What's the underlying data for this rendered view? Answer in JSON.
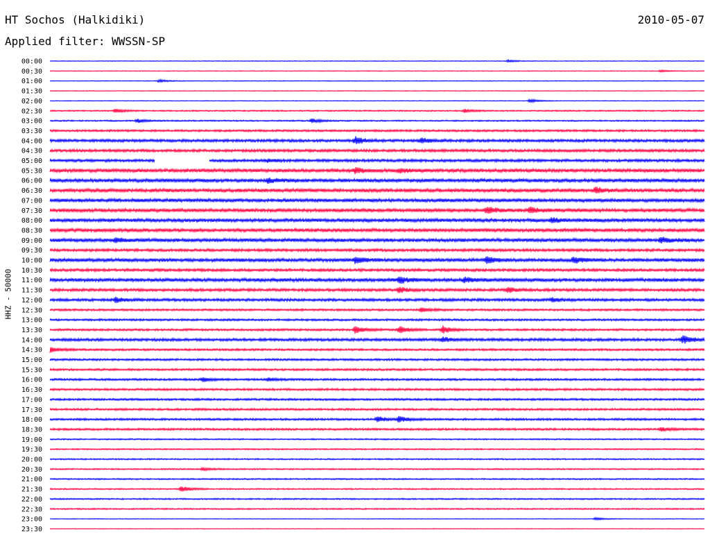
{
  "header": {
    "station": "HT Sochos (Halkidiki)",
    "date": "2010-05-07",
    "filter": "Applied filter: WWSSN-SP"
  },
  "chart_data": {
    "type": "line",
    "title": "HT Sochos (Halkidiki)",
    "ylabel": "HHZ - 50000",
    "colors": [
      "#0000ff",
      "#ff0040"
    ],
    "rows": [
      "00:00",
      "00:30",
      "01:00",
      "01:30",
      "02:00",
      "02:30",
      "03:00",
      "03:30",
      "04:00",
      "04:30",
      "05:00",
      "05:30",
      "06:00",
      "06:30",
      "07:00",
      "07:30",
      "08:00",
      "08:30",
      "09:00",
      "09:30",
      "10:00",
      "10:30",
      "11:00",
      "11:30",
      "12:00",
      "12:30",
      "13:00",
      "13:30",
      "14:00",
      "14:30",
      "15:00",
      "15:30",
      "16:00",
      "16:30",
      "17:00",
      "17:30",
      "18:00",
      "18:30",
      "19:00",
      "19:30",
      "20:00",
      "20:30",
      "21:00",
      "21:30",
      "22:00",
      "22:30",
      "23:00",
      "23:30"
    ],
    "noise_level": [
      1,
      1,
      1,
      1,
      1,
      2,
      2,
      3,
      4,
      4,
      4,
      5,
      5,
      5,
      5,
      5,
      5,
      5,
      5,
      4,
      5,
      4,
      5,
      4,
      4,
      3,
      3,
      3,
      4,
      3,
      3,
      3,
      3,
      3,
      3,
      3,
      3,
      3,
      2,
      2,
      2,
      2,
      2,
      2,
      2,
      2,
      1,
      1
    ],
    "events": [
      {
        "row": 0,
        "minute": 21,
        "amp": 3
      },
      {
        "row": 1,
        "minute": 28,
        "amp": 3
      },
      {
        "row": 2,
        "minute": 5,
        "amp": 4
      },
      {
        "row": 4,
        "minute": 22,
        "amp": 5
      },
      {
        "row": 5,
        "minute": 3,
        "amp": 6
      },
      {
        "row": 5,
        "minute": 19,
        "amp": 5
      },
      {
        "row": 6,
        "minute": 4,
        "amp": 6
      },
      {
        "row": 6,
        "minute": 12,
        "amp": 6
      },
      {
        "row": 8,
        "minute": 14,
        "amp": 10
      },
      {
        "row": 8,
        "minute": 17,
        "amp": 8
      },
      {
        "row": 10,
        "minute": 10,
        "amp": 4
      },
      {
        "row": 11,
        "minute": 14,
        "amp": 7
      },
      {
        "row": 11,
        "minute": 16,
        "amp": 6
      },
      {
        "row": 12,
        "minute": 10,
        "amp": 6
      },
      {
        "row": 13,
        "minute": 25,
        "amp": 8
      },
      {
        "row": 15,
        "minute": 20,
        "amp": 10
      },
      {
        "row": 15,
        "minute": 22,
        "amp": 8
      },
      {
        "row": 16,
        "minute": 23,
        "amp": 7
      },
      {
        "row": 18,
        "minute": 3,
        "amp": 6
      },
      {
        "row": 18,
        "minute": 28,
        "amp": 8
      },
      {
        "row": 20,
        "minute": 14,
        "amp": 9
      },
      {
        "row": 20,
        "minute": 20,
        "amp": 10
      },
      {
        "row": 20,
        "minute": 24,
        "amp": 9
      },
      {
        "row": 22,
        "minute": 16,
        "amp": 9
      },
      {
        "row": 22,
        "minute": 19,
        "amp": 7
      },
      {
        "row": 23,
        "minute": 16,
        "amp": 8
      },
      {
        "row": 23,
        "minute": 21,
        "amp": 7
      },
      {
        "row": 24,
        "minute": 3,
        "amp": 7
      },
      {
        "row": 24,
        "minute": 23,
        "amp": 6
      },
      {
        "row": 25,
        "minute": 17,
        "amp": 6
      },
      {
        "row": 27,
        "minute": 14,
        "amp": 12
      },
      {
        "row": 27,
        "minute": 16,
        "amp": 10
      },
      {
        "row": 27,
        "minute": 18,
        "amp": 11
      },
      {
        "row": 28,
        "minute": 29,
        "amp": 12
      },
      {
        "row": 28,
        "minute": 18,
        "amp": 6
      },
      {
        "row": 29,
        "minute": 0,
        "amp": 8
      },
      {
        "row": 32,
        "minute": 7,
        "amp": 6
      },
      {
        "row": 32,
        "minute": 10,
        "amp": 5
      },
      {
        "row": 36,
        "minute": 15,
        "amp": 8
      },
      {
        "row": 36,
        "minute": 16,
        "amp": 9
      },
      {
        "row": 37,
        "minute": 28,
        "amp": 5
      },
      {
        "row": 41,
        "minute": 7,
        "amp": 4
      },
      {
        "row": 43,
        "minute": 6,
        "amp": 9
      },
      {
        "row": 46,
        "minute": 25,
        "amp": 4
      }
    ],
    "gaps": [
      {
        "row": 10,
        "from_minute": 4.8,
        "to_minute": 7.3
      }
    ],
    "x_minutes": 30
  }
}
